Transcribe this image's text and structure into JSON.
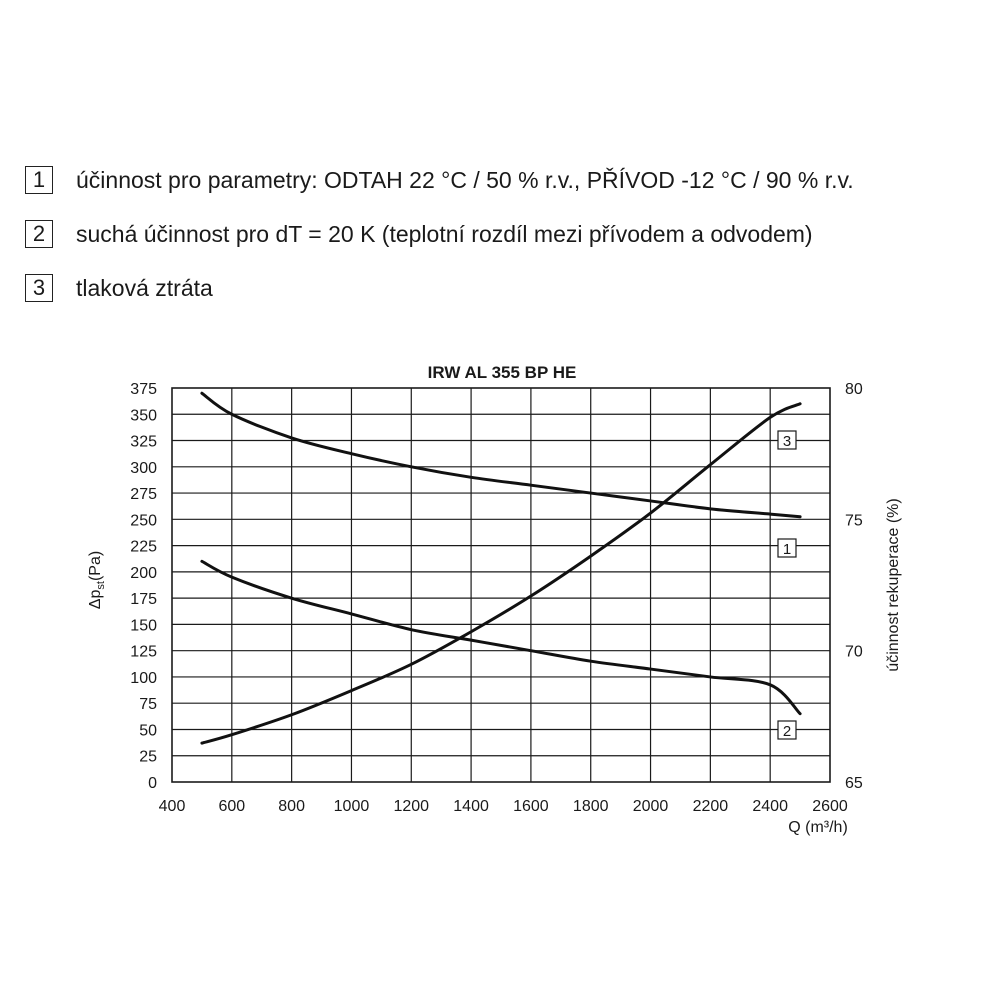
{
  "legend": [
    {
      "key": "1",
      "text": "účinnost pro parametry: ODTAH 22 °C / 50 % r.v., PŘÍVOD -12 °C / 90 % r.v."
    },
    {
      "key": "2",
      "text": "suchá účinnost pro dT = 20 K (teplotní rozdíl mezi přívodem a odvodem)"
    },
    {
      "key": "3",
      "text": "tlaková ztráta"
    }
  ],
  "chart_data": {
    "type": "line",
    "title": "IRW AL 355 BP HE",
    "xlabel": "Q (m³/h)",
    "ylabel_left": "Δpst(Pa)",
    "ylabel_right": "účinnost rekuperace (%)",
    "xlim": [
      400,
      2600
    ],
    "xticks": [
      400,
      600,
      800,
      1000,
      1200,
      1400,
      1600,
      1800,
      2000,
      2200,
      2400,
      2600
    ],
    "ylim_left": [
      0,
      375
    ],
    "yticks_left": [
      0,
      25,
      50,
      75,
      100,
      125,
      150,
      175,
      200,
      225,
      250,
      275,
      300,
      325,
      350,
      375
    ],
    "ylim_right": [
      65,
      80
    ],
    "yticks_right": [
      65,
      70,
      75,
      80
    ],
    "grid": true,
    "series": [
      {
        "name": "1",
        "axis": "right",
        "x": [
          500,
          600,
          800,
          1000,
          1200,
          1400,
          1600,
          1800,
          2000,
          2200,
          2400,
          2500
        ],
        "y": [
          79.8,
          79.0,
          78.1,
          77.5,
          77.0,
          76.6,
          76.3,
          76.0,
          75.7,
          75.4,
          75.2,
          75.1
        ]
      },
      {
        "name": "2",
        "axis": "right",
        "x": [
          500,
          600,
          800,
          1000,
          1200,
          1400,
          1600,
          1800,
          2000,
          2200,
          2400,
          2500
        ],
        "y": [
          73.4,
          72.8,
          72.0,
          71.4,
          70.8,
          70.4,
          70.0,
          69.6,
          69.3,
          69.0,
          68.7,
          67.6
        ]
      },
      {
        "name": "3",
        "axis": "left",
        "x": [
          500,
          600,
          800,
          1000,
          1200,
          1400,
          1600,
          1800,
          2000,
          2200,
          2400,
          2500
        ],
        "y": [
          37,
          45,
          64,
          87,
          112,
          143,
          177,
          215,
          256,
          302,
          347,
          360
        ]
      }
    ],
    "curve_labels": [
      "1",
      "2",
      "3"
    ]
  }
}
